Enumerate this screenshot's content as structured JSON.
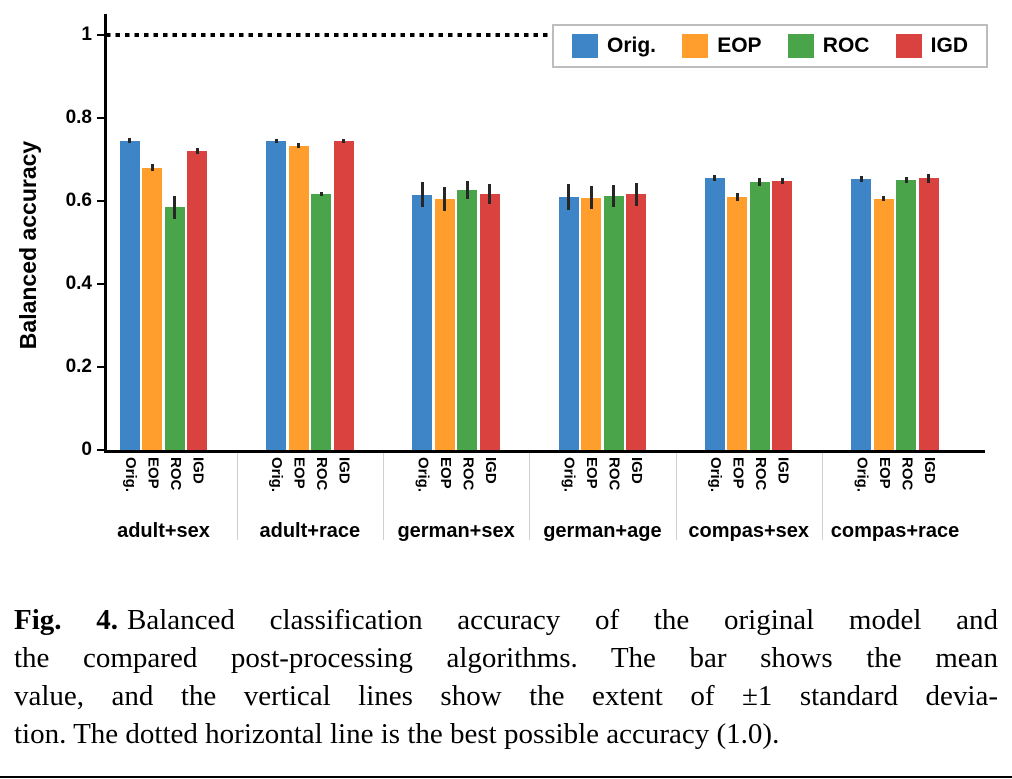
{
  "chart_data": {
    "type": "bar",
    "title": "",
    "xlabel": "",
    "ylabel": "Balanced accuracy",
    "ylim": [
      0,
      1.05
    ],
    "grid": false,
    "legend_position": "upper right",
    "reference_line": {
      "y": 1.0,
      "style": "dotted",
      "meaning": "best possible accuracy"
    },
    "error_bar_color": "#262626",
    "axis_color": "#000000",
    "yticks": [
      {
        "value": 1.0,
        "label": "1"
      },
      {
        "value": 0.8,
        "label": "0.8"
      },
      {
        "value": 0.6,
        "label": "0.6"
      },
      {
        "value": 0.4,
        "label": "0.4"
      },
      {
        "value": 0.2,
        "label": "0.2"
      },
      {
        "value": 0.0,
        "label": "0"
      }
    ],
    "categories": [
      "adult+sex",
      "adult+race",
      "german+sex",
      "german+age",
      "compas+sex",
      "compas+race"
    ],
    "bar_labels": [
      "Orig.",
      "EOP",
      "ROC",
      "IGD"
    ],
    "series": [
      {
        "name": "Orig.",
        "color": "#3d85c6",
        "values": [
          0.745,
          0.745,
          0.615,
          0.61,
          0.655,
          0.653
        ],
        "std": [
          0.006,
          0.005,
          0.03,
          0.032,
          0.008,
          0.008
        ]
      },
      {
        "name": "EOP",
        "color": "#ff9e2d",
        "values": [
          0.68,
          0.733,
          0.605,
          0.608,
          0.61,
          0.606
        ],
        "std": [
          0.008,
          0.006,
          0.028,
          0.027,
          0.009,
          0.006
        ]
      },
      {
        "name": "ROC",
        "color": "#4aa54a",
        "values": [
          0.585,
          0.617,
          0.627,
          0.612,
          0.645,
          0.651
        ],
        "std": [
          0.028,
          0.005,
          0.022,
          0.027,
          0.01,
          0.008
        ]
      },
      {
        "name": "IGD",
        "color": "#d9423e",
        "values": [
          0.72,
          0.745,
          0.617,
          0.616,
          0.648,
          0.655
        ],
        "std": [
          0.007,
          0.005,
          0.025,
          0.028,
          0.008,
          0.011
        ]
      }
    ]
  },
  "caption": {
    "lines": [
      {
        "prefix": "Fig. 4.",
        "text": "Balanced classification accuracy of the original model and"
      },
      {
        "prefix": "",
        "text": "the compared post-processing algorithms. The bar shows the mean"
      },
      {
        "prefix": "",
        "text": "value, and the vertical lines show the extent of ±1 standard devia-"
      },
      {
        "prefix": "",
        "text": "tion. The dotted horizontal line is the best possible accuracy (1.0)."
      }
    ]
  }
}
